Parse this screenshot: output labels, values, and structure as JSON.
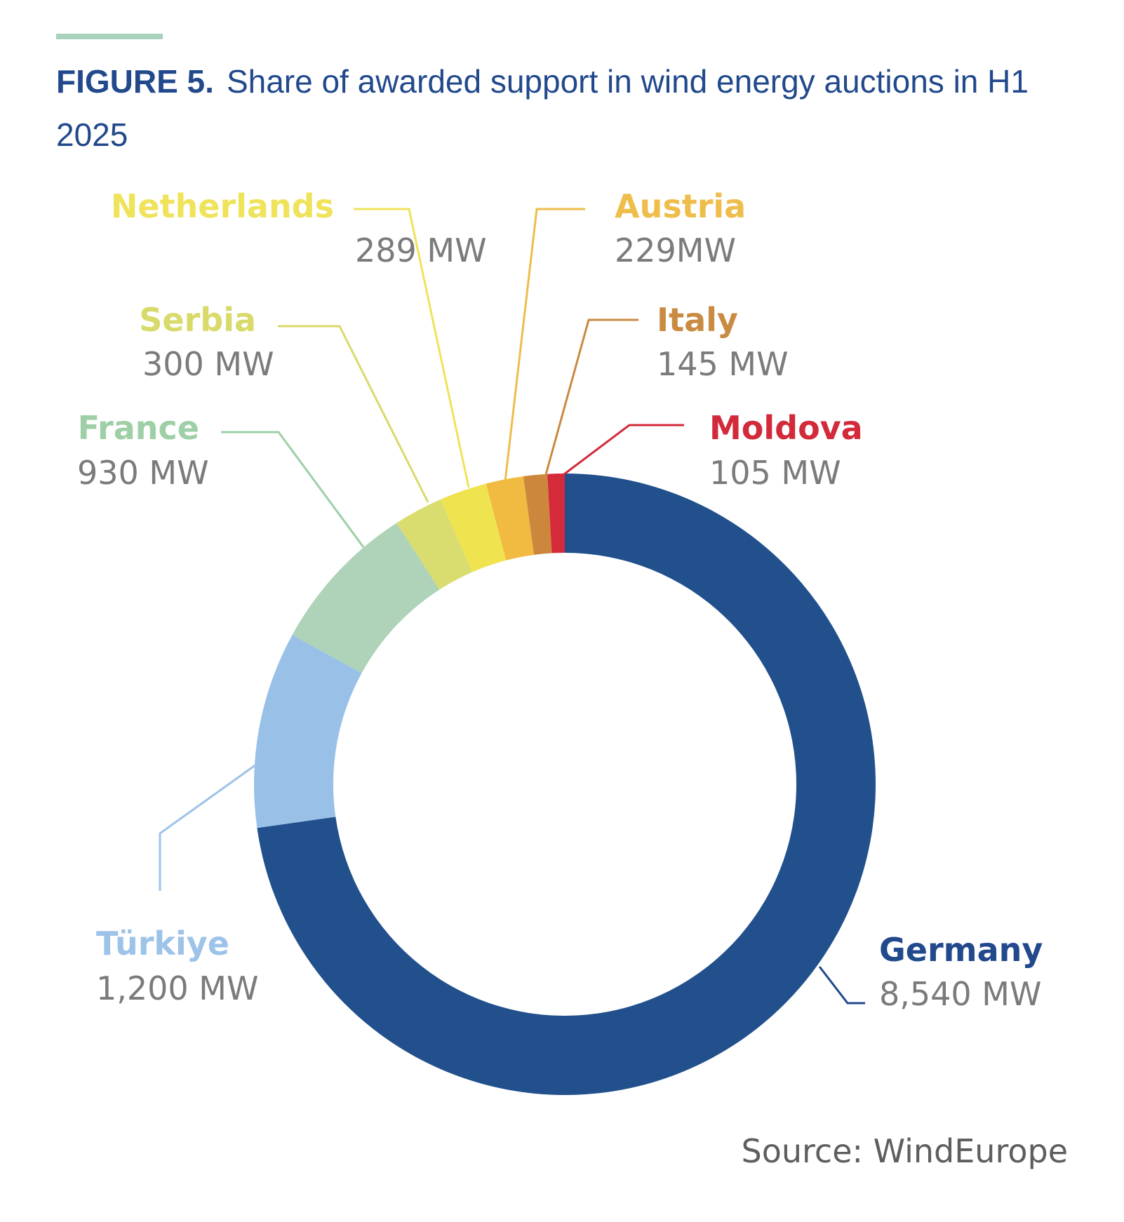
{
  "figure": {
    "label": "FIGURE 5.",
    "title": "Share of awarded support in wind energy auctions in H1 2025",
    "source": "Source: WindEurope"
  },
  "chart_data": {
    "type": "pie",
    "variant": "donut",
    "unit": "MW",
    "slices": [
      {
        "name": "Germany",
        "value": 8540,
        "display": "8,540 MW",
        "color": "#21508c"
      },
      {
        "name": "Türkiye",
        "value": 1200,
        "display": "1,200 MW",
        "color": "#99c1e8"
      },
      {
        "name": "France",
        "value": 930,
        "display": "930 MW",
        "color": "#aed3b8"
      },
      {
        "name": "Serbia",
        "value": 300,
        "display": "300 MW",
        "color": "#d9dc6e"
      },
      {
        "name": "Netherlands",
        "value": 289,
        "display": "289 MW",
        "color": "#f0e350"
      },
      {
        "name": "Austria",
        "value": 229,
        "display": "229MW",
        "color": "#f0bb40"
      },
      {
        "name": "Italy",
        "value": 145,
        "display": "145 MW",
        "color": "#cd873c"
      },
      {
        "name": "Moldova",
        "value": 105,
        "display": "105 MW",
        "color": "#d42a3a"
      }
    ],
    "name_colors": {
      "Germany": "#21498c",
      "Türkiye": "#9dc3e8",
      "France": "#9ecfa6",
      "Serbia": "#d8da6a",
      "Netherlands": "#efe35a",
      "Austria": "#eebd4a",
      "Italy": "#c98a42",
      "Moldova": "#d22a3a"
    },
    "value_color": "#7b7b7b"
  }
}
